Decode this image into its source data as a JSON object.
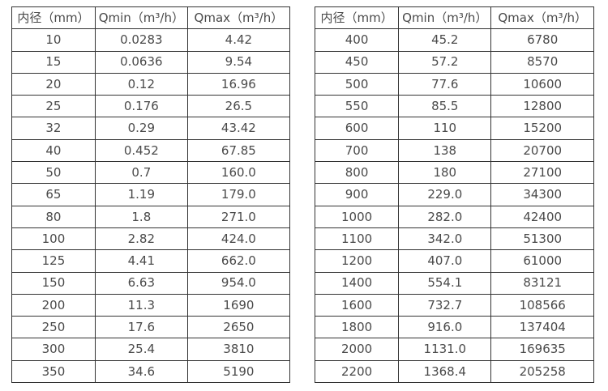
{
  "colors": {
    "table_border": "#333333",
    "table_text": "#4a4a4a",
    "background": "#ffffff"
  },
  "chart_data": [
    {
      "type": "table",
      "title": "",
      "headers": [
        "内径（mm）",
        "Qmin（m³/h）",
        "Qmax（m³/h）"
      ],
      "rows": [
        [
          "10",
          "0.0283",
          "4.42"
        ],
        [
          "15",
          "0.0636",
          "9.54"
        ],
        [
          "20",
          "0.12",
          "16.96"
        ],
        [
          "25",
          "0.176",
          "26.5"
        ],
        [
          "32",
          "0.29",
          "43.42"
        ],
        [
          "40",
          "0.452",
          "67.85"
        ],
        [
          "50",
          "0.7",
          "160.0"
        ],
        [
          "65",
          "1.19",
          "179.0"
        ],
        [
          "80",
          "1.8",
          "271.0"
        ],
        [
          "100",
          "2.82",
          "424.0"
        ],
        [
          "125",
          "4.41",
          "662.0"
        ],
        [
          "150",
          "6.63",
          "954.0"
        ],
        [
          "200",
          "11.3",
          "1690"
        ],
        [
          "250",
          "17.6",
          "2650"
        ],
        [
          "300",
          "25.4",
          "3810"
        ],
        [
          "350",
          "34.6",
          "5190"
        ]
      ]
    },
    {
      "type": "table",
      "title": "",
      "headers": [
        "内径（mm）",
        "Qmin（m³/h）",
        "Qmax（m³/h）"
      ],
      "rows": [
        [
          "400",
          "45.2",
          "6780"
        ],
        [
          "450",
          "57.2",
          "8570"
        ],
        [
          "500",
          "77.6",
          "10600"
        ],
        [
          "550",
          "85.5",
          "12800"
        ],
        [
          "600",
          "110",
          "15200"
        ],
        [
          "700",
          "138",
          "20700"
        ],
        [
          "800",
          "180",
          "27100"
        ],
        [
          "900",
          "229.0",
          "34300"
        ],
        [
          "1000",
          "282.0",
          "42400"
        ],
        [
          "1100",
          "342.0",
          "51300"
        ],
        [
          "1200",
          "407.0",
          "61000"
        ],
        [
          "1400",
          "554.1",
          "83121"
        ],
        [
          "1600",
          "732.7",
          "108566"
        ],
        [
          "1800",
          "916.0",
          "137404"
        ],
        [
          "2000",
          "1131.0",
          "169635"
        ],
        [
          "2200",
          "1368.4",
          "205258"
        ]
      ]
    }
  ]
}
